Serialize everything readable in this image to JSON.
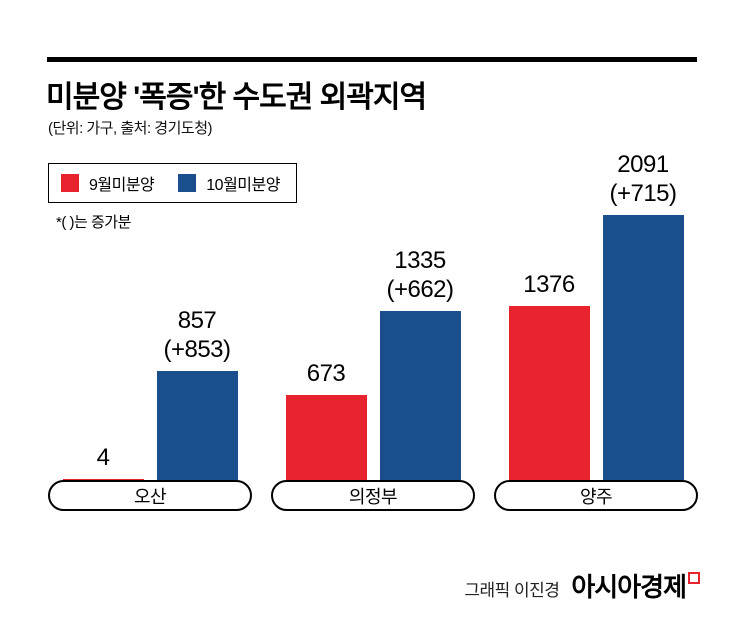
{
  "page": {
    "title": "미분양 '폭증'한 수도권 외곽지역",
    "subtitle": "(단위: 가구, 출처: 경기도청)",
    "note": "*(  )는 증가분",
    "credit": "그래픽 이진경",
    "brand": "아시아경제"
  },
  "colors": {
    "september": "#e8232d",
    "october": "#1b4e8c",
    "rule": "#000000"
  },
  "chart_data": {
    "type": "bar",
    "title": "미분양 '폭증'한 수도권 외곽지역",
    "unit": "가구",
    "source": "경기도청",
    "categories": [
      "오산",
      "의정부",
      "양주"
    ],
    "series": [
      {
        "name": "9월미분양",
        "color_key": "september",
        "values": [
          4,
          673,
          1376
        ],
        "labels": [
          "4",
          "673",
          "1376"
        ]
      },
      {
        "name": "10월미분양",
        "color_key": "october",
        "values": [
          857,
          1335,
          2091
        ],
        "labels": [
          "857\n(+853)",
          "1335\n(+662)",
          "2091\n(+715)"
        ]
      }
    ],
    "increase_values": [
      853,
      662,
      715
    ],
    "ylim": [
      0,
      2200
    ],
    "grid": false,
    "legend_position": "top-left"
  }
}
